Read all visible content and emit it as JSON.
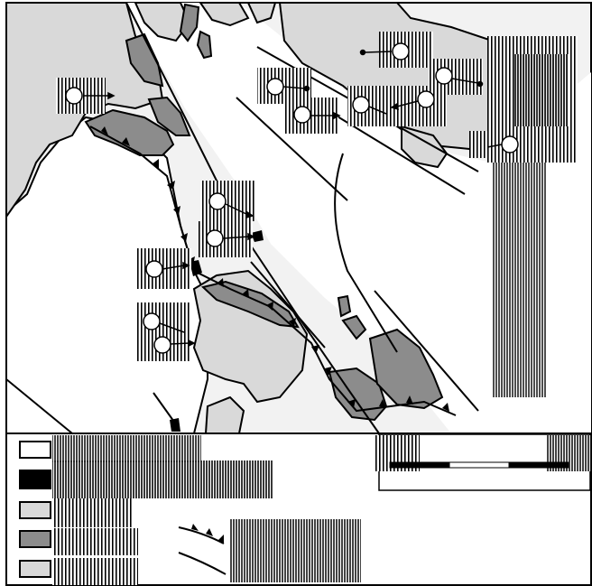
{
  "figure": {
    "kind": "geological sketch map with legend",
    "colors": {
      "background_land": "#ffffff",
      "sea": "#f2f2f2",
      "light_unit": "#d9d9d9",
      "dark_unit": "#8c8c8c",
      "black_unit": "#000000",
      "line": "#000000"
    }
  },
  "legend": {
    "swatch_colors": [
      "#ffffff",
      "#000000",
      "#d9d9d9",
      "#8c8c8c",
      "#d9d9d9"
    ],
    "line_symbols": [
      "thrust-fault-with-teeth",
      "fault-line"
    ]
  },
  "scale_bar": {
    "segments": [
      "black",
      "white",
      "black"
    ]
  }
}
